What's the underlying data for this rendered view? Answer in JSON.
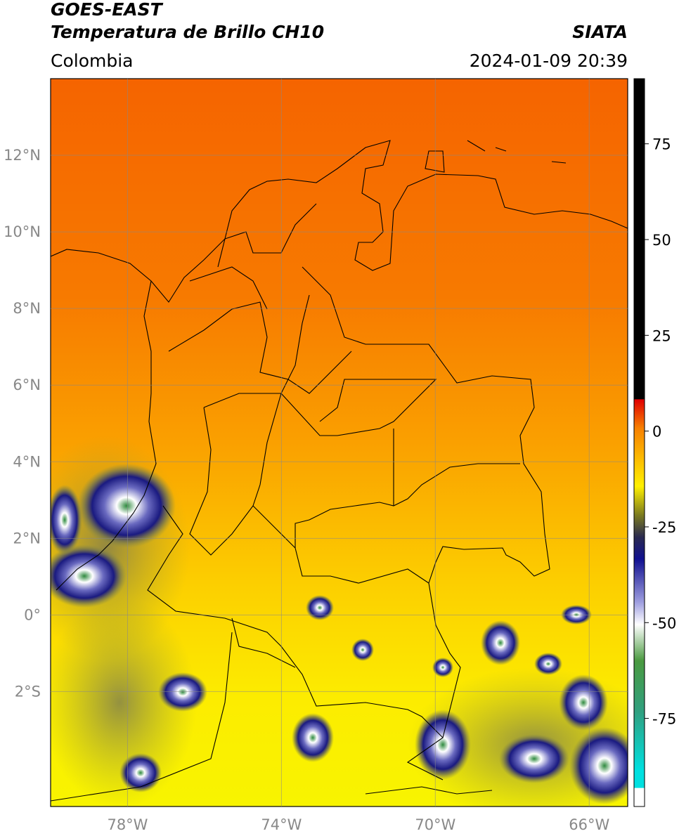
{
  "header": {
    "title": "GOES-EAST",
    "subtitle": "Temperatura de Brillo CH10",
    "region": "Colombia",
    "source": "SIATA",
    "datetime": "2024-01-09 20:39"
  },
  "map": {
    "xlim": [
      -80,
      -65
    ],
    "ylim": [
      -5,
      14
    ],
    "xticks": [
      {
        "value": -78,
        "label": "78°W"
      },
      {
        "value": -74,
        "label": "74°W"
      },
      {
        "value": -70,
        "label": "70°W"
      },
      {
        "value": -66,
        "label": "66°W"
      }
    ],
    "yticks": [
      {
        "value": 12,
        "label": "12°N"
      },
      {
        "value": 10,
        "label": "10°N"
      },
      {
        "value": 8,
        "label": "8°N"
      },
      {
        "value": 6,
        "label": "6°N"
      },
      {
        "value": 4,
        "label": "4°N"
      },
      {
        "value": 2,
        "label": "2°N"
      },
      {
        "value": 0,
        "label": "0°"
      },
      {
        "value": -2,
        "label": "2°S"
      }
    ]
  },
  "colorbar": {
    "lim": [
      -98,
      92
    ],
    "ticks": [
      75,
      50,
      25,
      0,
      -25,
      -50,
      -75
    ]
  }
}
